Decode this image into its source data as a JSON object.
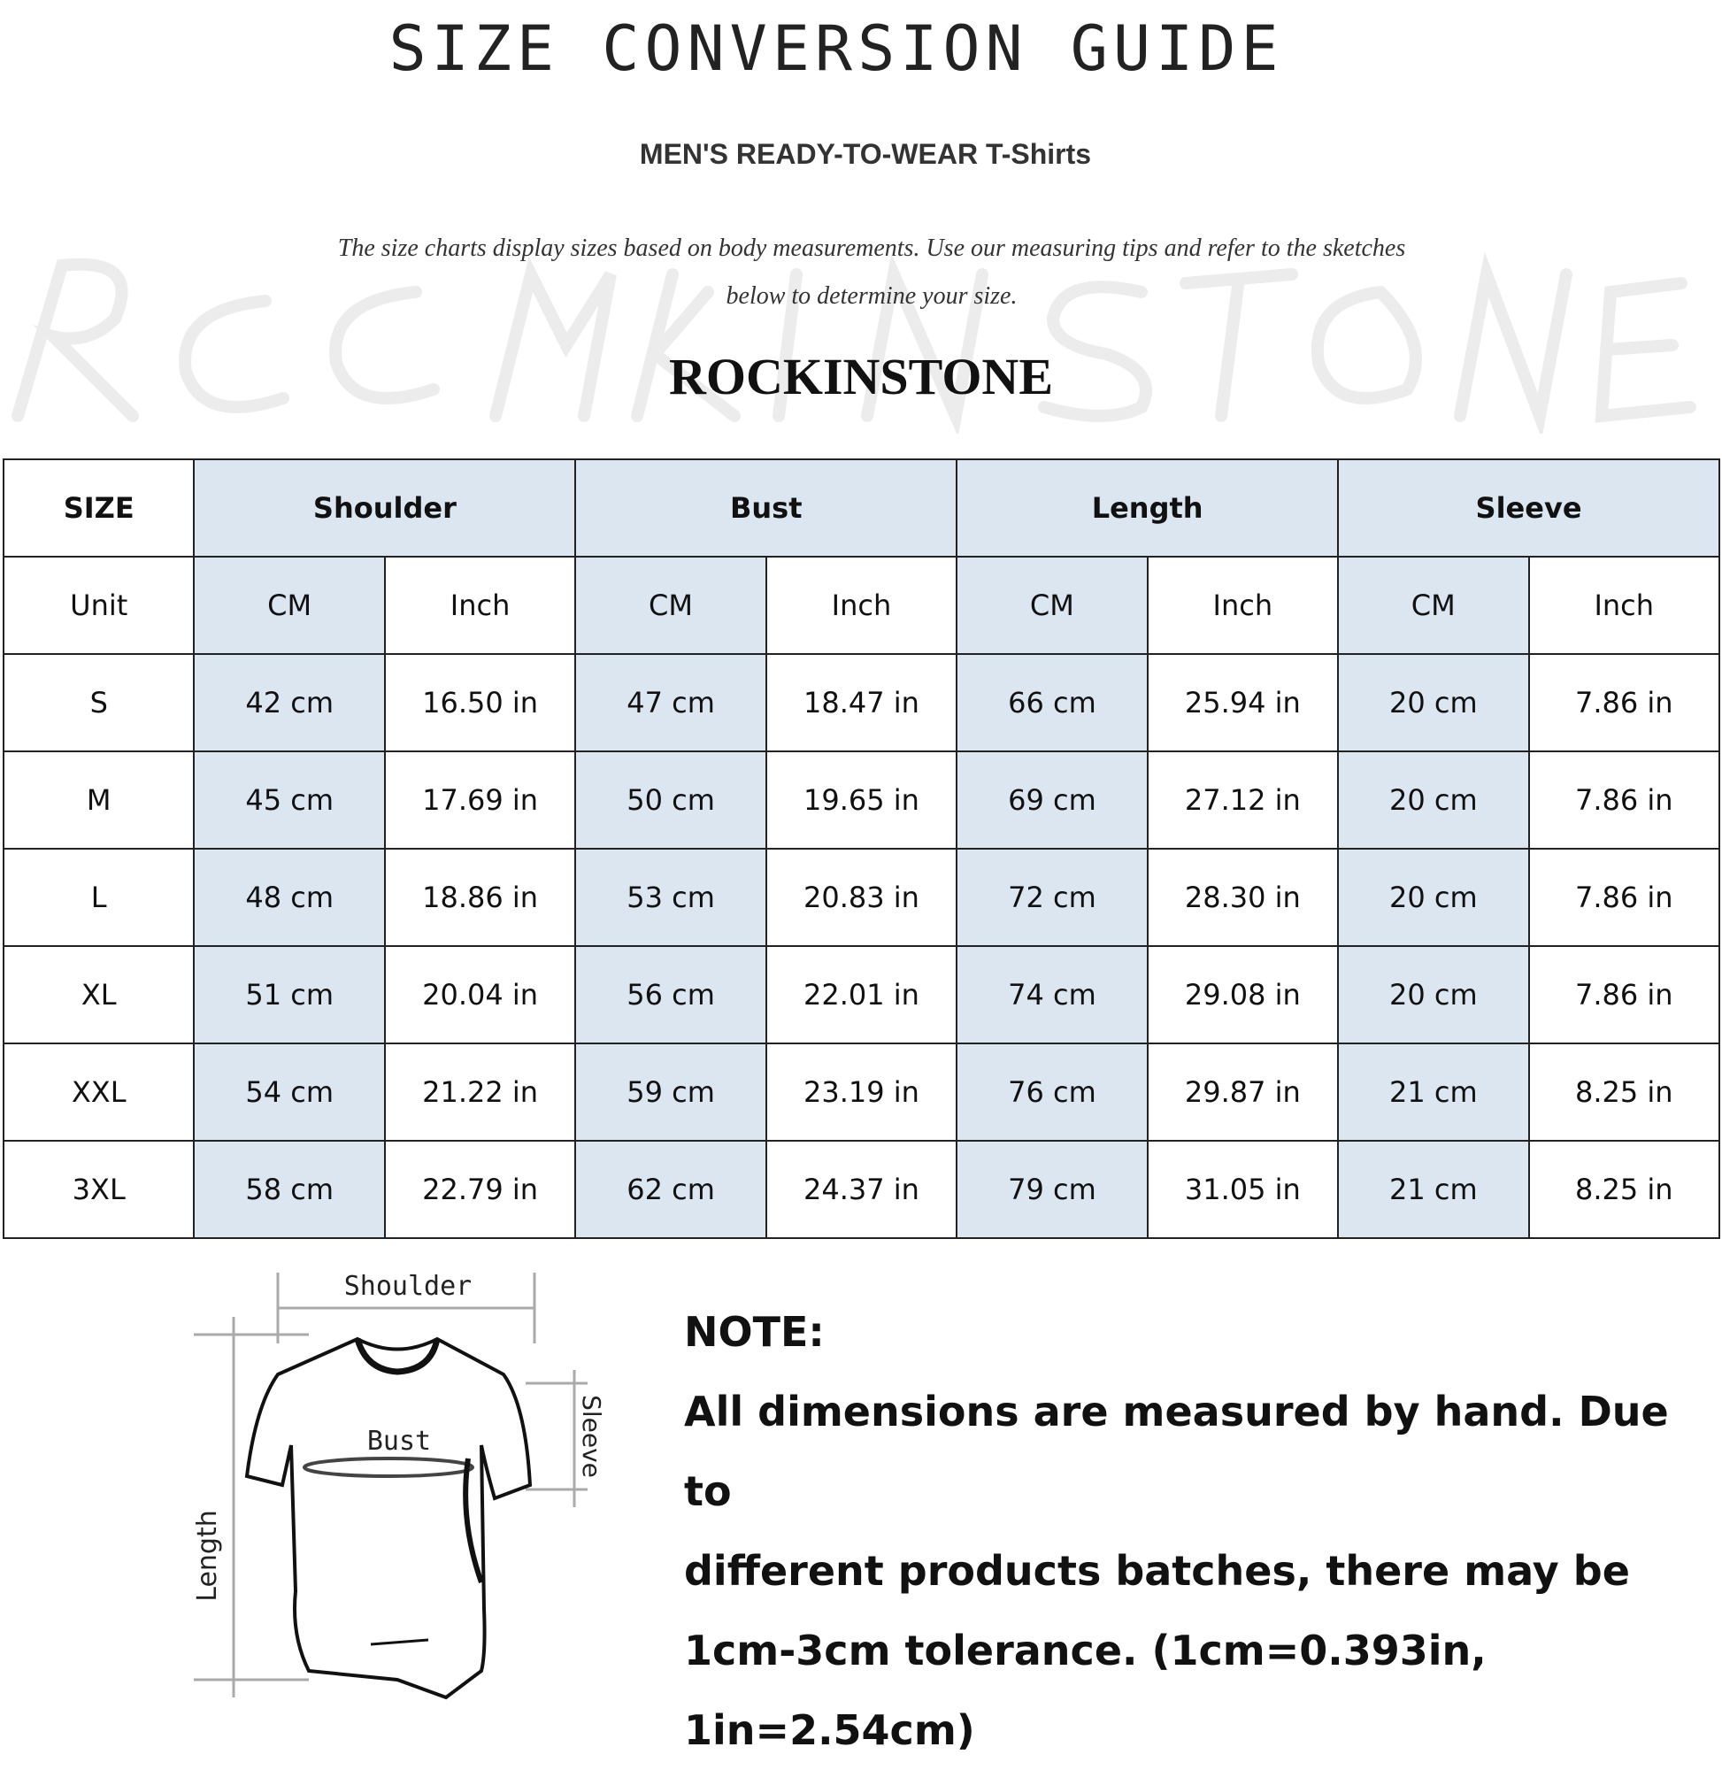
{
  "title": "SIZE CONVERSION GUIDE",
  "subtitle": "MEN'S READY-TO-WEAR T-Shirts",
  "intro_line1": "The size charts display sizes based on body measurements. Use our measuring tips and refer to the sketches",
  "intro_line2": "below to determine your size.",
  "watermark": "Rockinstone",
  "brand": "ROCKINSTONE",
  "table": {
    "header": [
      "SIZE",
      "Shoulder",
      "Bust",
      "Length",
      "Sleeve"
    ],
    "units": [
      "Unit",
      "CM",
      "Inch",
      "CM",
      "Inch",
      "CM",
      "Inch",
      "CM",
      "Inch"
    ],
    "rows": [
      [
        "S",
        "42 cm",
        "16.50 in",
        "47 cm",
        "18.47  in",
        "66 cm",
        "25.94  in",
        "20 cm",
        "7.86  in"
      ],
      [
        "M",
        "45 cm",
        "17.69  in",
        "50 cm",
        "19.65  in",
        "69 cm",
        "27.12  in",
        "20 cm",
        "7.86  in"
      ],
      [
        "L",
        "48 cm",
        "18.86  in",
        "53 cm",
        "20.83  in",
        "72 cm",
        "28.30  in",
        "20 cm",
        "7.86  in"
      ],
      [
        "XL",
        "51 cm",
        "20.04  in",
        "56 cm",
        "22.01  in",
        "74 cm",
        "29.08  in",
        "20 cm",
        "7.86  in"
      ],
      [
        "XXL",
        "54 cm",
        "21.22  in",
        "59 cm",
        "23.19  in",
        "76 cm",
        "29.87  in",
        "21 cm",
        "8.25  in"
      ],
      [
        "3XL",
        "58 cm",
        "22.79  in",
        "62 cm",
        "24.37  in",
        "79 cm",
        "31.05  in",
        "21 cm",
        "8.25  in"
      ]
    ]
  },
  "sketch": {
    "shoulder": "Shoulder",
    "bust": "Bust",
    "length": "Length",
    "sleeve": "Sleeve"
  },
  "note": {
    "heading": "NOTE:",
    "lines": [
      "All dimensions are measured by hand. Due to",
      "different products batches, there may be",
      "1cm-3cm tolerance. (1cm=0.393in, 1in=2.54cm)"
    ]
  },
  "colors": {
    "header_fill": "#dce6f1",
    "border": "#222222"
  }
}
